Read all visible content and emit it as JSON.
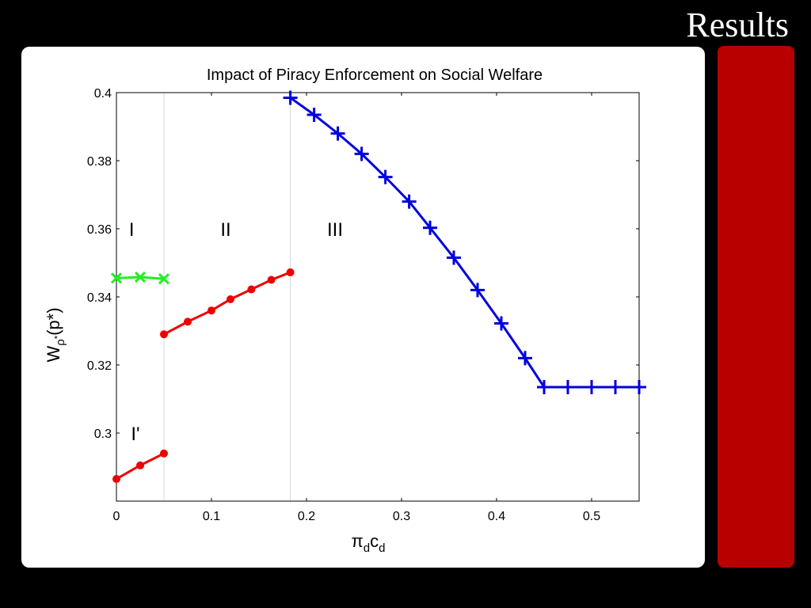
{
  "slide": {
    "title": "Results",
    "accent_color": "#b80000"
  },
  "chart_data": {
    "type": "line",
    "title": "Impact of Piracy Enforcement on Social Welfare",
    "xlabel": "πdcd",
    "ylabel": "Wρ*(p*)",
    "xlim": [
      0,
      0.55
    ],
    "ylim": [
      0.28,
      0.4
    ],
    "xticks": [
      0,
      0.1,
      0.2,
      0.3,
      0.4,
      0.5
    ],
    "xtick_labels": [
      "0",
      "0.1",
      "0.2",
      "0.3",
      "0.4",
      "0.5"
    ],
    "yticks": [
      0.3,
      0.32,
      0.34,
      0.36,
      0.38,
      0.4
    ],
    "ytick_labels": [
      "0.3",
      "0.32",
      "0.34",
      "0.36",
      "0.38",
      "0.4"
    ],
    "grid": false,
    "vlines": [
      0.05,
      0.183
    ],
    "region_labels": [
      {
        "text": "I",
        "x": 0.016,
        "y": 0.36
      },
      {
        "text": "II",
        "x": 0.115,
        "y": 0.36
      },
      {
        "text": "III",
        "x": 0.23,
        "y": 0.36
      },
      {
        "text": "I'",
        "x": 0.02,
        "y": 0.3
      }
    ],
    "series": [
      {
        "marker": "x",
        "color": "#22ee22",
        "x": [
          0,
          0.025,
          0.05
        ],
        "y": [
          0.3455,
          0.3458,
          0.3453
        ]
      },
      {
        "marker": "dot",
        "color": "#ee0000",
        "x": [
          0.05,
          0.075,
          0.1,
          0.12,
          0.142,
          0.163,
          0.183
        ],
        "y": [
          0.329,
          0.3327,
          0.336,
          0.3393,
          0.3422,
          0.345,
          0.3472
        ]
      },
      {
        "marker": "dot",
        "color": "#ee0000",
        "x": [
          0,
          0.025,
          0.05
        ],
        "y": [
          0.2865,
          0.2905,
          0.294
        ]
      },
      {
        "marker": "plus",
        "color": "#0000dd",
        "x": [
          0.183,
          0.208,
          0.233,
          0.258,
          0.283,
          0.308,
          0.33,
          0.355,
          0.38,
          0.405,
          0.43,
          0.45,
          0.475,
          0.5,
          0.525,
          0.55
        ],
        "y": [
          0.3985,
          0.3935,
          0.388,
          0.382,
          0.3752,
          0.368,
          0.3603,
          0.3515,
          0.342,
          0.3322,
          0.322,
          0.3135,
          0.3135,
          0.3135,
          0.3135,
          0.3135
        ]
      }
    ]
  }
}
